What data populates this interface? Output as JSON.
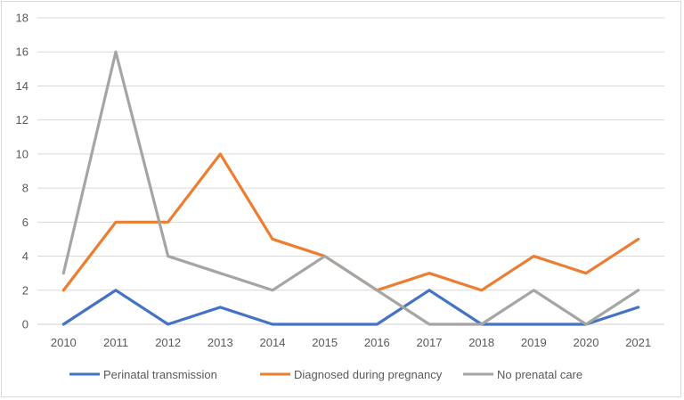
{
  "chart_data": {
    "type": "line",
    "title": "",
    "xlabel": "",
    "ylabel": "",
    "categories": [
      "2010",
      "2011",
      "2012",
      "2013",
      "2014",
      "2015",
      "2016",
      "2017",
      "2018",
      "2019",
      "2020",
      "2021"
    ],
    "ylim": [
      0,
      18
    ],
    "yticks": [
      "0",
      "2",
      "4",
      "6",
      "8",
      "10",
      "12",
      "14",
      "16",
      "18"
    ],
    "grid": true,
    "legend_position": "bottom",
    "series": [
      {
        "name": "Perinatal transmission",
        "color": "#4472C4",
        "values": [
          0,
          2,
          0,
          1,
          0,
          0,
          0,
          2,
          0,
          0,
          0,
          1
        ]
      },
      {
        "name": "Diagnosed during pregnancy",
        "color": "#ED7D31",
        "values": [
          2,
          6,
          6,
          10,
          5,
          4,
          2,
          3,
          2,
          4,
          3,
          5
        ]
      },
      {
        "name": "No prenatal care",
        "color": "#A5A5A5",
        "values": [
          3,
          16,
          4,
          3,
          2,
          4,
          2,
          0,
          0,
          2,
          0,
          2
        ]
      }
    ]
  }
}
